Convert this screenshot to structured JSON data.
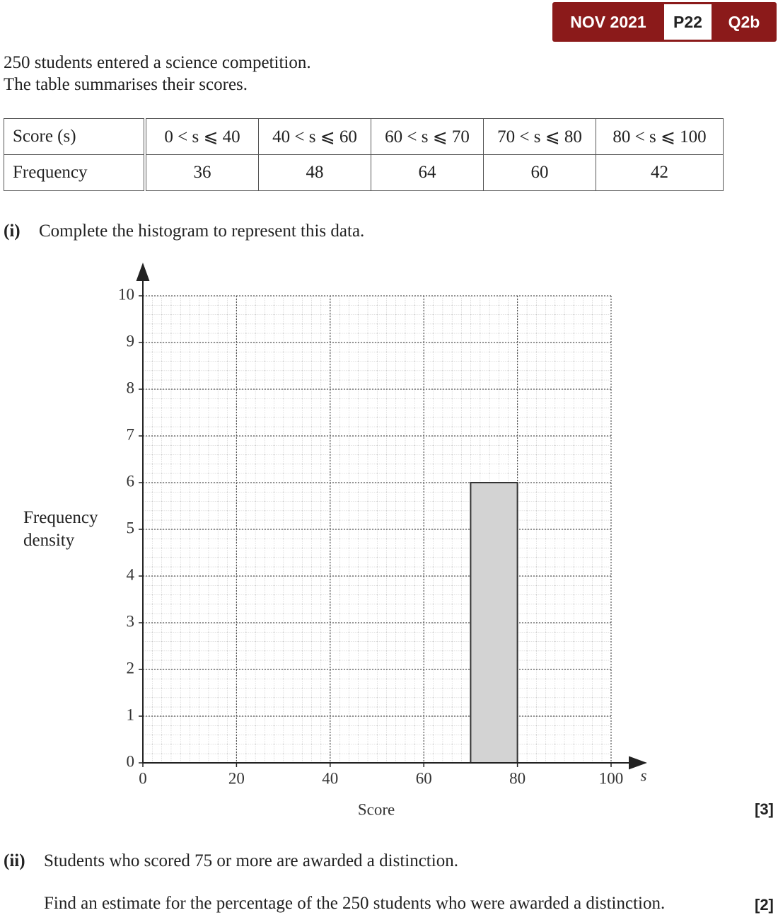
{
  "badge": {
    "session": "NOV 2021",
    "paper": "P22",
    "question": "Q2b"
  },
  "intro": [
    "250 students entered a science competition.",
    "The table summarises their scores."
  ],
  "table": {
    "header": [
      "Score (s)",
      "0 < s ⩽ 40",
      "40 < s ⩽ 60",
      "60 < s ⩽ 70",
      "70 < s ⩽ 80",
      "80 < s ⩽ 100"
    ],
    "rows": [
      [
        "Frequency",
        36,
        48,
        64,
        60,
        42
      ]
    ]
  },
  "part_i": {
    "label": "(i)",
    "text": "Complete the histogram to represent this data.",
    "marks": "[3]"
  },
  "chart_data": {
    "type": "histogram",
    "x_label": "Score",
    "x_symbol": "s",
    "y_label": "Frequency density",
    "bins": [
      70,
      80
    ],
    "counts": [
      6
    ],
    "color": "#d3d3d3",
    "xlim": [
      0,
      100
    ],
    "ylim": [
      0,
      10
    ],
    "xticks": [
      0,
      20,
      40,
      60,
      80,
      100
    ],
    "yticks": [
      0,
      1,
      2,
      3,
      4,
      5,
      6,
      7,
      8,
      9,
      10
    ],
    "grid": true
  },
  "part_ii": {
    "label": "(ii)",
    "lines": [
      "Students who scored 75 or more are awarded a distinction.",
      "Find an estimate for the percentage of the 250 students who were awarded a distinction."
    ],
    "marks": "[2]"
  }
}
